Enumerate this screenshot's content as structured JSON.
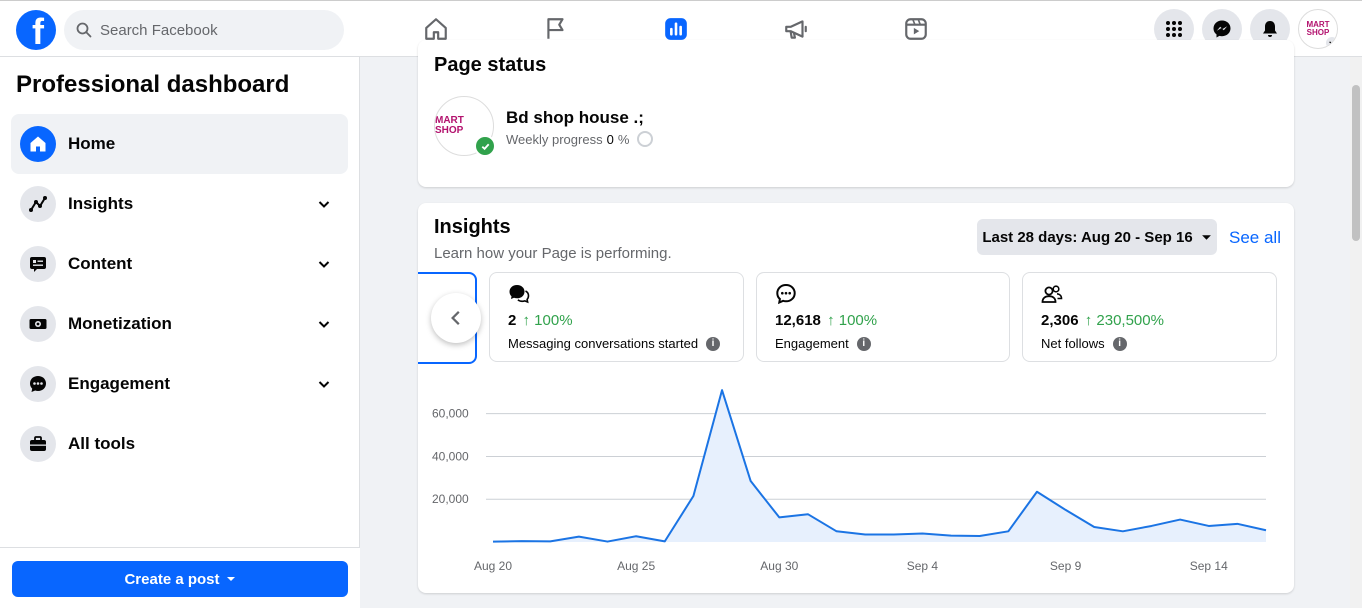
{
  "header": {
    "logo_letter": "f",
    "search_placeholder": "Search Facebook",
    "nav_tabs": [
      "home-icon",
      "flag-icon",
      "dashboard-icon",
      "megaphone-icon",
      "video-icon"
    ],
    "active_tab": "dashboard-icon",
    "avatar_text": "MART SHOP"
  },
  "sidebar": {
    "title": "Professional dashboard",
    "items": [
      {
        "label": "Home",
        "icon": "home-icon",
        "active": true,
        "expandable": false
      },
      {
        "label": "Insights",
        "icon": "insights-icon",
        "active": false,
        "expandable": true
      },
      {
        "label": "Content",
        "icon": "content-icon",
        "active": false,
        "expandable": true
      },
      {
        "label": "Monetization",
        "icon": "monetization-icon",
        "active": false,
        "expandable": true
      },
      {
        "label": "Engagement",
        "icon": "engagement-icon",
        "active": false,
        "expandable": true
      },
      {
        "label": "All tools",
        "icon": "toolbox-icon",
        "active": false,
        "expandable": false
      }
    ],
    "create_post_label": "Create a post"
  },
  "page_status": {
    "title": "Page status",
    "page_name": "Bd shop house .;",
    "avatar_text": "MART SHOP",
    "weekly_label": "Weekly progress",
    "weekly_value": "0",
    "weekly_unit": "%"
  },
  "insights": {
    "title": "Insights",
    "subtitle": "Learn how your Page is performing.",
    "date_range": "Last 28 days: Aug 20 - Sep 16",
    "see_all": "See all",
    "metrics": [
      {
        "value": "2",
        "change": "↑ 100%",
        "label": "Messaging conversations started",
        "icon": "messaging-icon"
      },
      {
        "value": "12,618",
        "change": "↑ 100%",
        "label": "Engagement",
        "icon": "engagement-chat-icon"
      },
      {
        "value": "2,306",
        "change": "↑ 230,500%",
        "label": "Net follows",
        "icon": "follows-icon"
      }
    ]
  },
  "colors": {
    "accent": "#0866ff",
    "positive": "#31a24c",
    "line": "#1b74e4",
    "area": "#e7f0fd"
  },
  "chart_data": {
    "type": "area",
    "x": [
      "Aug 20",
      "Aug 21",
      "Aug 22",
      "Aug 23",
      "Aug 24",
      "Aug 25",
      "Aug 26",
      "Aug 27",
      "Aug 28",
      "Aug 29",
      "Aug 30",
      "Aug 31",
      "Sep 1",
      "Sep 2",
      "Sep 3",
      "Sep 4",
      "Sep 5",
      "Sep 6",
      "Sep 7",
      "Sep 8",
      "Sep 9",
      "Sep 10",
      "Sep 11",
      "Sep 12",
      "Sep 13",
      "Sep 14",
      "Sep 15",
      "Sep 16"
    ],
    "series": [
      {
        "values": [
          200,
          400,
          300,
          2500,
          200,
          2700,
          300,
          21500,
          71000,
          28500,
          11500,
          13000,
          5000,
          3500,
          3500,
          4000,
          3000,
          2800,
          5000,
          23500,
          15000,
          7000,
          5000,
          7500,
          10500,
          7500,
          8500,
          5500
        ]
      }
    ],
    "xticks": [
      "Aug 20",
      "Aug 25",
      "Aug 30",
      "Sep 4",
      "Sep 9",
      "Sep 14"
    ],
    "yticks": [
      "20,000",
      "40,000",
      "60,000"
    ],
    "ylim": [
      0,
      72000
    ],
    "grid": true
  }
}
